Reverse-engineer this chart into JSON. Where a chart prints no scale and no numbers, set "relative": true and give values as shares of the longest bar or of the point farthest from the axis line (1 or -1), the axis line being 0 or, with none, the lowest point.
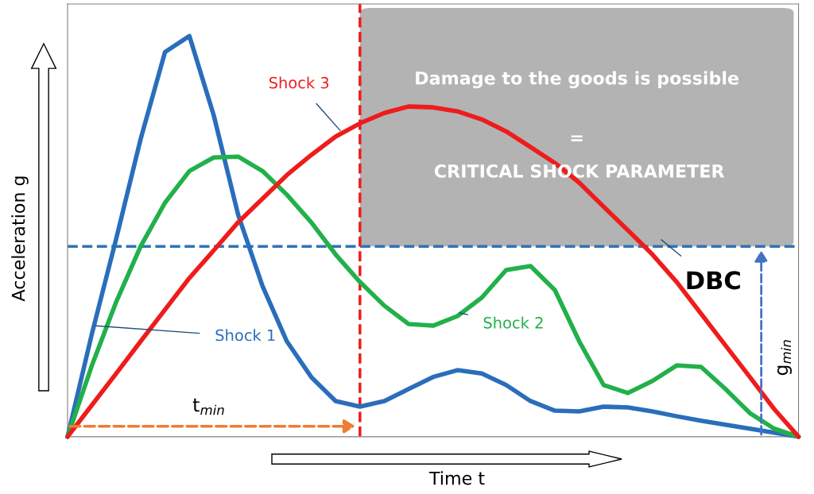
{
  "chart_data": {
    "type": "line",
    "relative": true,
    "xlabel": "Time t",
    "ylabel": "Acceleration g",
    "categories": [
      null,
      null,
      null,
      null,
      null,
      null,
      null,
      null,
      null,
      null,
      null,
      null,
      null,
      null,
      null,
      null,
      null,
      null,
      null,
      null,
      null,
      null,
      null,
      null,
      null,
      null,
      null,
      null,
      null,
      null,
      null
    ],
    "series": [
      {
        "name": "Shock 1",
        "color": "#2a6ebb",
        "values": [
          0,
          0.257,
          0.495,
          0.743,
          0.96,
          1.0,
          0.802,
          0.554,
          0.376,
          0.238,
          0.149,
          0.089,
          0.075,
          0.089,
          0.119,
          0.149,
          0.166,
          0.158,
          0.129,
          0.089,
          0.065,
          0.063,
          0.075,
          0.073,
          0.063,
          0.051,
          0.04,
          0.03,
          0.02,
          0.01,
          0
        ]
      },
      {
        "name": "Shock 2",
        "color": "#22b04a",
        "values": [
          0,
          0.178,
          0.337,
          0.475,
          0.584,
          0.663,
          0.697,
          0.699,
          0.663,
          0.604,
          0.535,
          0.455,
          0.386,
          0.327,
          0.281,
          0.277,
          0.301,
          0.347,
          0.416,
          0.426,
          0.366,
          0.238,
          0.129,
          0.109,
          0.139,
          0.178,
          0.174,
          0.119,
          0.059,
          0.02,
          0
        ]
      },
      {
        "name": "Shock 3",
        "color": "#ee1c1c",
        "values": [
          0,
          0.079,
          0.158,
          0.238,
          0.317,
          0.396,
          0.465,
          0.535,
          0.594,
          0.653,
          0.703,
          0.749,
          0.782,
          0.808,
          0.824,
          0.822,
          0.812,
          0.792,
          0.762,
          0.723,
          0.683,
          0.634,
          0.574,
          0.515,
          0.455,
          0.386,
          0.307,
          0.228,
          0.149,
          0.069,
          0
        ]
      }
    ],
    "ref_lines": [
      {
        "axis": "y",
        "value": 0.475,
        "label": "DBC",
        "color": "#2e75b6",
        "line_style": "dashed"
      }
    ],
    "annotations": [
      "Damage to the goods is possible",
      "=",
      "CRITICAL SHOCK PARAMETER",
      "t$_{min}$",
      "g$_{min}$"
    ],
    "line_style": "solid",
    "marker": "none",
    "grid": false,
    "legend": false
  }
}
